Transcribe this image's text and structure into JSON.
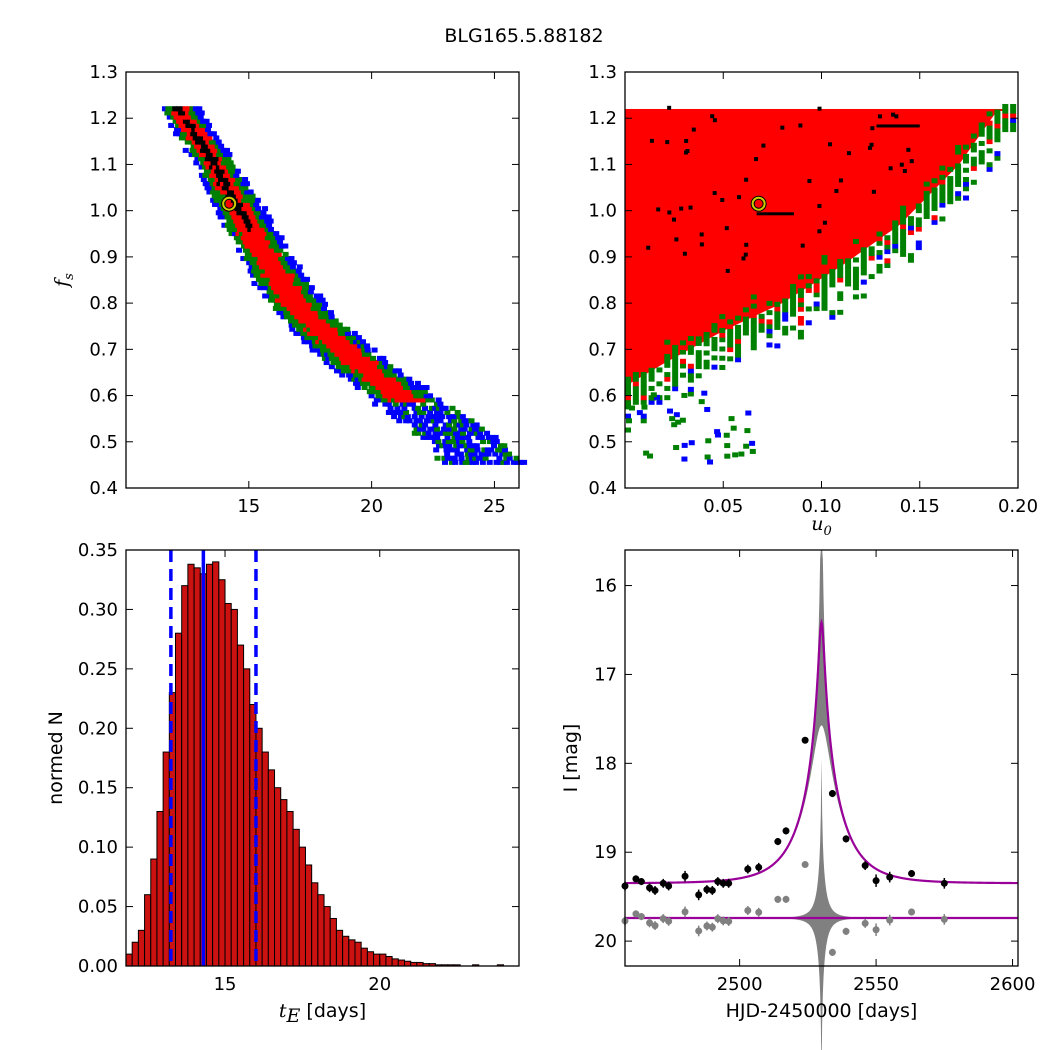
{
  "figure": {
    "title": "BLG165.5.88182"
  },
  "chart_data": [
    {
      "panel": "top-left",
      "type": "heatmap",
      "xlim": [
        10,
        26
      ],
      "ylim": [
        0.4,
        1.3
      ],
      "xticks": [
        "15",
        "20",
        "25"
      ],
      "yticks": [
        "0.4",
        "0.5",
        "0.6",
        "0.7",
        "0.8",
        "0.9",
        "1.0",
        "1.1",
        "1.2",
        "1.3"
      ],
      "xlabel": "",
      "ylabel": "f",
      "ylabel_sub": "s",
      "levels": [
        {
          "color": "#0000ff",
          "note": "outer contour"
        },
        {
          "color": "#008000"
        },
        {
          "color": "#ff0000"
        },
        {
          "color": "#000000",
          "note": "inner contour"
        }
      ],
      "band": {
        "ridge": [
          [
            12.0,
            1.22
          ],
          [
            13.5,
            1.1
          ],
          [
            15.5,
            0.9
          ],
          [
            17.0,
            0.78
          ],
          [
            19.0,
            0.68
          ],
          [
            21.0,
            0.6
          ],
          [
            23.5,
            0.5
          ],
          [
            24.5,
            0.45
          ]
        ],
        "half_width": {
          "blue": 1.2,
          "green": 0.95,
          "red": 0.6,
          "black": 0.25
        }
      },
      "best_fit": {
        "x": 14.2,
        "y": 1.015,
        "marker_color": "#cccc00"
      }
    },
    {
      "panel": "top-right",
      "type": "heatmap",
      "xlim": [
        0.0,
        0.2
      ],
      "ylim": [
        0.4,
        1.3
      ],
      "xticks": [
        "0.05",
        "0.10",
        "0.15",
        "0.20"
      ],
      "yticks": [
        "0.4",
        "0.5",
        "0.6",
        "0.7",
        "0.8",
        "0.9",
        "1.0",
        "1.1",
        "1.2",
        "1.3"
      ],
      "xlabel": "u",
      "xlabel_sub": "0",
      "ylabel": "",
      "levels": [
        {
          "color": "#0000ff"
        },
        {
          "color": "#008000"
        },
        {
          "color": "#ff0000"
        },
        {
          "color": "#000000"
        }
      ],
      "region": {
        "boundary_u0_at_fs": [
          [
            0.0,
            0.62
          ],
          [
            0.02,
            0.67
          ],
          [
            0.05,
            0.74
          ],
          [
            0.08,
            0.8
          ],
          [
            0.11,
            0.88
          ],
          [
            0.14,
            0.97
          ],
          [
            0.17,
            1.1
          ],
          [
            0.19,
            1.22
          ]
        ],
        "fs_max": 1.22
      },
      "best_fit": {
        "x": 0.068,
        "y": 1.015,
        "marker_color": "#cccc00"
      }
    },
    {
      "panel": "bottom-left",
      "type": "bar",
      "xlim": [
        11.8,
        24.5
      ],
      "ylim": [
        0.0,
        0.35
      ],
      "xticks": [
        "15",
        "20"
      ],
      "yticks": [
        "0.00",
        "0.05",
        "0.10",
        "0.15",
        "0.20",
        "0.25",
        "0.30",
        "0.35"
      ],
      "xlabel": "t",
      "xlabel_sub": "E",
      "xlabel_suffix": " [days]",
      "ylabel": "normed N",
      "bin_start": 11.8,
      "bin_width": 0.2,
      "values": [
        0.01,
        0.02,
        0.03,
        0.06,
        0.09,
        0.13,
        0.18,
        0.23,
        0.28,
        0.32,
        0.338,
        0.335,
        0.33,
        0.338,
        0.34,
        0.325,
        0.305,
        0.3,
        0.27,
        0.25,
        0.22,
        0.2,
        0.18,
        0.165,
        0.15,
        0.14,
        0.13,
        0.115,
        0.1,
        0.085,
        0.07,
        0.06,
        0.05,
        0.04,
        0.03,
        0.025,
        0.022,
        0.02,
        0.015,
        0.012,
        0.01,
        0.01,
        0.008,
        0.006,
        0.005,
        0.004,
        0.003,
        0.003,
        0.002,
        0.002,
        0.001,
        0.001,
        0.001,
        0.001,
        0.0,
        0.0,
        0.001,
        0.0,
        0.0,
        0.0,
        0.001,
        0.0,
        0.0,
        0.0
      ],
      "bar_color": "#cc1111",
      "vlines": [
        {
          "x": 13.25,
          "style": "dashed",
          "color": "#0000ff"
        },
        {
          "x": 14.3,
          "style": "solid",
          "color": "#0000ff"
        },
        {
          "x": 16.0,
          "style": "dashed",
          "color": "#0000ff"
        }
      ]
    },
    {
      "panel": "bottom-right",
      "type": "scatter",
      "xlim": [
        2458,
        2602
      ],
      "ylim": [
        20.28,
        15.6
      ],
      "y_inverted": true,
      "xticks": [
        "2500",
        "2550",
        "2600"
      ],
      "yticks": [
        "16",
        "17",
        "18",
        "19",
        "20"
      ],
      "xlabel": "HJD-2450000 [days]",
      "ylabel": "I [mag]",
      "model": {
        "t0": 2530.0,
        "base_mag": 19.35,
        "tE": 14.3,
        "u0": 0.068,
        "fs": 1.015,
        "color": "#990099"
      },
      "points": [
        {
          "x": 2458,
          "y": 19.38,
          "err": 0.05
        },
        {
          "x": 2462,
          "y": 19.3,
          "err": 0.04
        },
        {
          "x": 2464,
          "y": 19.33,
          "err": 0.04
        },
        {
          "x": 2467,
          "y": 19.4,
          "err": 0.05
        },
        {
          "x": 2469,
          "y": 19.43,
          "err": 0.05
        },
        {
          "x": 2472,
          "y": 19.35,
          "err": 0.05
        },
        {
          "x": 2474,
          "y": 19.38,
          "err": 0.05
        },
        {
          "x": 2480,
          "y": 19.27,
          "err": 0.06
        },
        {
          "x": 2485,
          "y": 19.48,
          "err": 0.06
        },
        {
          "x": 2488,
          "y": 19.42,
          "err": 0.05
        },
        {
          "x": 2490,
          "y": 19.43,
          "err": 0.05
        },
        {
          "x": 2492,
          "y": 19.33,
          "err": 0.05
        },
        {
          "x": 2494,
          "y": 19.35,
          "err": 0.05
        },
        {
          "x": 2496,
          "y": 19.35,
          "err": 0.05
        },
        {
          "x": 2503,
          "y": 19.19,
          "err": 0.05
        },
        {
          "x": 2507,
          "y": 19.17,
          "err": 0.05
        },
        {
          "x": 2514,
          "y": 18.88,
          "err": 0.04
        },
        {
          "x": 2517,
          "y": 18.76,
          "err": 0.04
        },
        {
          "x": 2524,
          "y": 17.74,
          "err": 0.03
        },
        {
          "x": 2534,
          "y": 18.34,
          "err": 0.04
        },
        {
          "x": 2539,
          "y": 18.85,
          "err": 0.04
        },
        {
          "x": 2546,
          "y": 19.15,
          "err": 0.05
        },
        {
          "x": 2550,
          "y": 19.32,
          "err": 0.07
        },
        {
          "x": 2555,
          "y": 19.28,
          "err": 0.06
        },
        {
          "x": 2563,
          "y": 19.24,
          "err": 0.04
        },
        {
          "x": 2575,
          "y": 19.35,
          "err": 0.06
        }
      ],
      "residual_baseline": 19.74,
      "residual_color": "#808080"
    }
  ]
}
